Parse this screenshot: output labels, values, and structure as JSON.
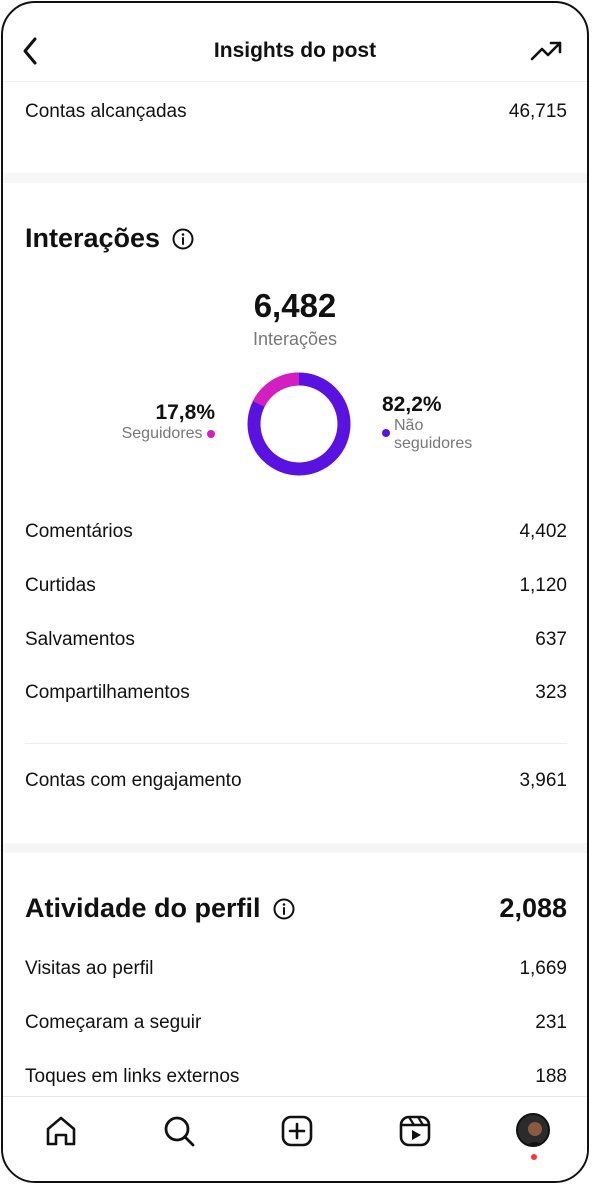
{
  "header": {
    "title": "Insights do post",
    "back_icon": "chevron-left-icon",
    "trend_icon": "trending-up-icon"
  },
  "reach": {
    "label": "Contas alcançadas",
    "value": "46,715"
  },
  "interactions": {
    "title": "Interações",
    "total": "6,482",
    "total_label": "Interações",
    "followers_pct": "17,8%",
    "followers_label": "Seguidores",
    "followers_color": "#d41fc0",
    "non_followers_pct": "82,2%",
    "non_followers_label_1": "Não",
    "non_followers_label_2": "seguidores",
    "non_followers_color": "#5a12e0",
    "followers_fraction": 0.178,
    "rows": [
      {
        "label": "Comentários",
        "value": "4,402"
      },
      {
        "label": "Curtidas",
        "value": "1,120"
      },
      {
        "label": "Salvamentos",
        "value": "637"
      },
      {
        "label": "Compartilhamentos",
        "value": "323"
      }
    ],
    "engaged": {
      "label": "Contas com engajamento",
      "value": "3,961"
    }
  },
  "profile_activity": {
    "title": "Atividade do perfil",
    "total": "2,088",
    "rows": [
      {
        "label": "Visitas ao perfil",
        "value": "1,669"
      },
      {
        "label": "Começaram a seguir",
        "value": "231"
      },
      {
        "label": "Toques em links externos",
        "value": "188"
      }
    ]
  },
  "tabbar": {
    "items": [
      "home-icon",
      "search-icon",
      "create-icon",
      "reels-icon",
      "profile-avatar"
    ]
  }
}
